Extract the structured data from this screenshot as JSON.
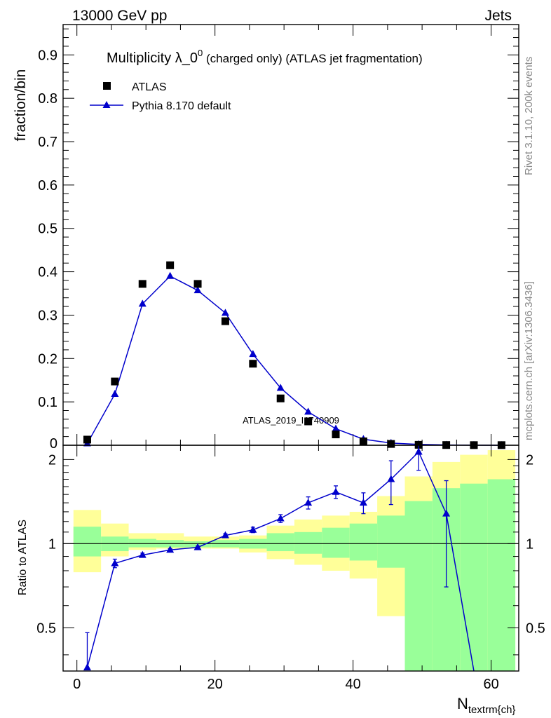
{
  "header": {
    "left": "13000 GeV pp",
    "right": "Jets"
  },
  "side_labels": {
    "rivet": "Rivet 3.1.10,  200k events",
    "mcplots": "mcplots.cern.ch [arXiv:1306.3436]"
  },
  "watermark": "ATLAS_2019_I1740909",
  "colors": {
    "mc": "#0000cc",
    "data": "#000000",
    "band_inner": "#99ff99",
    "band_outer": "#ffff99"
  },
  "chart_data": [
    {
      "type": "scatter",
      "title": "Multiplicity λ_0",
      "title_sup": "0",
      "title_suffix": " (charged only) (ATLAS jet fragmentation)",
      "ylabel": "fraction/bin",
      "xlim": [
        -2,
        64
      ],
      "ylim": [
        0,
        0.97
      ],
      "yticks": [
        0.1,
        0.2,
        0.3,
        0.4,
        0.5,
        0.6,
        0.7,
        0.8,
        0.9
      ],
      "ytick_labels": [
        "0.1",
        "0.2",
        "0.3",
        "0.4",
        "0.5",
        "0.6",
        "0.7",
        "0.8",
        "0.9"
      ],
      "ybottom_label": "0",
      "legend": {
        "placement": "top-left",
        "entries": [
          "ATLAS",
          "Pythia 8.170 default"
        ]
      },
      "series": [
        {
          "name": "ATLAS",
          "marker": "square",
          "x": [
            1.5,
            5.5,
            9.5,
            13.5,
            17.5,
            21.5,
            25.5,
            29.5,
            33.5,
            37.5,
            41.5,
            45.5,
            49.5,
            53.5,
            57.5,
            61.5
          ],
          "y": [
            0.013,
            0.147,
            0.372,
            0.415,
            0.372,
            0.286,
            0.188,
            0.108,
            0.055,
            0.025,
            0.009,
            0.003,
            0.001,
            0.0005,
            0.0003,
            0.0003
          ]
        },
        {
          "name": "Pythia 8.170 default",
          "marker": "triangle",
          "x": [
            1.5,
            5.5,
            9.5,
            13.5,
            17.5,
            21.5,
            25.5,
            29.5,
            33.5,
            37.5,
            41.5,
            45.5,
            49.5,
            53.5,
            57.5,
            61.5
          ],
          "y": [
            0.004,
            0.118,
            0.326,
            0.39,
            0.357,
            0.305,
            0.21,
            0.132,
            0.077,
            0.038,
            0.014,
            0.005,
            0.002,
            0.0007,
            0.0002,
            0.0001
          ]
        }
      ]
    },
    {
      "type": "ratio",
      "ylabel": "Ratio to ATLAS",
      "xlabel": "N",
      "xlabel_sub": "textrm{ch}",
      "xlim": [
        -2,
        64
      ],
      "ylim": [
        0.35,
        2.25
      ],
      "yticks": [
        0.5,
        1,
        2
      ],
      "ytick_labels": [
        "0.5",
        "1",
        "2"
      ],
      "xticks": [
        0,
        20,
        40,
        60
      ],
      "xtick_labels": [
        "0",
        "20",
        "40",
        "60"
      ],
      "bins": [
        {
          "lo": -0.5,
          "hi": 3.5,
          "inner": [
            0.9,
            1.15
          ],
          "outer": [
            0.79,
            1.32
          ]
        },
        {
          "lo": 3.5,
          "hi": 7.5,
          "inner": [
            0.94,
            1.06
          ],
          "outer": [
            0.9,
            1.18
          ]
        },
        {
          "lo": 7.5,
          "hi": 11.5,
          "inner": [
            0.97,
            1.04
          ],
          "outer": [
            0.95,
            1.09
          ]
        },
        {
          "lo": 11.5,
          "hi": 15.5,
          "inner": [
            0.97,
            1.03
          ],
          "outer": [
            0.96,
            1.09
          ]
        },
        {
          "lo": 15.5,
          "hi": 19.5,
          "inner": [
            0.97,
            1.02
          ],
          "outer": [
            0.96,
            1.06
          ]
        },
        {
          "lo": 19.5,
          "hi": 23.5,
          "inner": [
            0.97,
            1.03
          ],
          "outer": [
            0.96,
            1.06
          ]
        },
        {
          "lo": 23.5,
          "hi": 27.5,
          "inner": [
            0.96,
            1.04
          ],
          "outer": [
            0.93,
            1.07
          ]
        },
        {
          "lo": 27.5,
          "hi": 31.5,
          "inner": [
            0.94,
            1.09
          ],
          "outer": [
            0.88,
            1.16
          ]
        },
        {
          "lo": 31.5,
          "hi": 35.5,
          "inner": [
            0.92,
            1.1
          ],
          "outer": [
            0.84,
            1.22
          ]
        },
        {
          "lo": 35.5,
          "hi": 39.5,
          "inner": [
            0.89,
            1.14
          ],
          "outer": [
            0.8,
            1.26
          ]
        },
        {
          "lo": 39.5,
          "hi": 43.5,
          "inner": [
            0.87,
            1.18
          ],
          "outer": [
            0.75,
            1.3
          ]
        },
        {
          "lo": 43.5,
          "hi": 47.5,
          "inner": [
            0.82,
            1.26
          ],
          "outer": [
            0.55,
            1.48
          ]
        },
        {
          "lo": 47.5,
          "hi": 51.5,
          "inner": [
            0.35,
            1.42
          ],
          "outer": [
            0.35,
            1.74
          ]
        },
        {
          "lo": 51.5,
          "hi": 55.5,
          "inner": [
            0.35,
            1.58
          ],
          "outer": [
            0.35,
            1.96
          ]
        },
        {
          "lo": 55.5,
          "hi": 59.5,
          "inner": [
            0.35,
            1.64
          ],
          "outer": [
            0.35,
            2.08
          ]
        },
        {
          "lo": 59.5,
          "hi": 63.5,
          "inner": [
            0.35,
            1.7
          ],
          "outer": [
            0.35,
            2.16
          ]
        }
      ],
      "series": [
        {
          "name": "Pythia 8.170 default",
          "x": [
            1.5,
            5.5,
            9.5,
            13.5,
            17.5,
            21.5,
            25.5,
            29.5,
            33.5,
            37.5,
            41.5,
            45.5,
            49.5,
            53.5,
            57.5
          ],
          "y": [
            0.36,
            0.85,
            0.91,
            0.95,
            0.97,
            1.07,
            1.12,
            1.23,
            1.4,
            1.53,
            1.4,
            1.7,
            2.13,
            1.28,
            0.35
          ],
          "err_lo": [
            0.0,
            0.03,
            0.015,
            0.01,
            0.01,
            0.015,
            0.025,
            0.04,
            0.07,
            0.08,
            0.12,
            0.32,
            0.3,
            0.58,
            0.0
          ],
          "err_hi": [
            0.12,
            0.03,
            0.015,
            0.01,
            0.01,
            0.015,
            0.025,
            0.04,
            0.07,
            0.08,
            0.12,
            0.28,
            0.28,
            0.4,
            0.0
          ],
          "marker_visible": [
            true,
            true,
            true,
            true,
            true,
            true,
            true,
            true,
            true,
            true,
            true,
            true,
            true,
            true,
            false
          ]
        }
      ]
    }
  ]
}
